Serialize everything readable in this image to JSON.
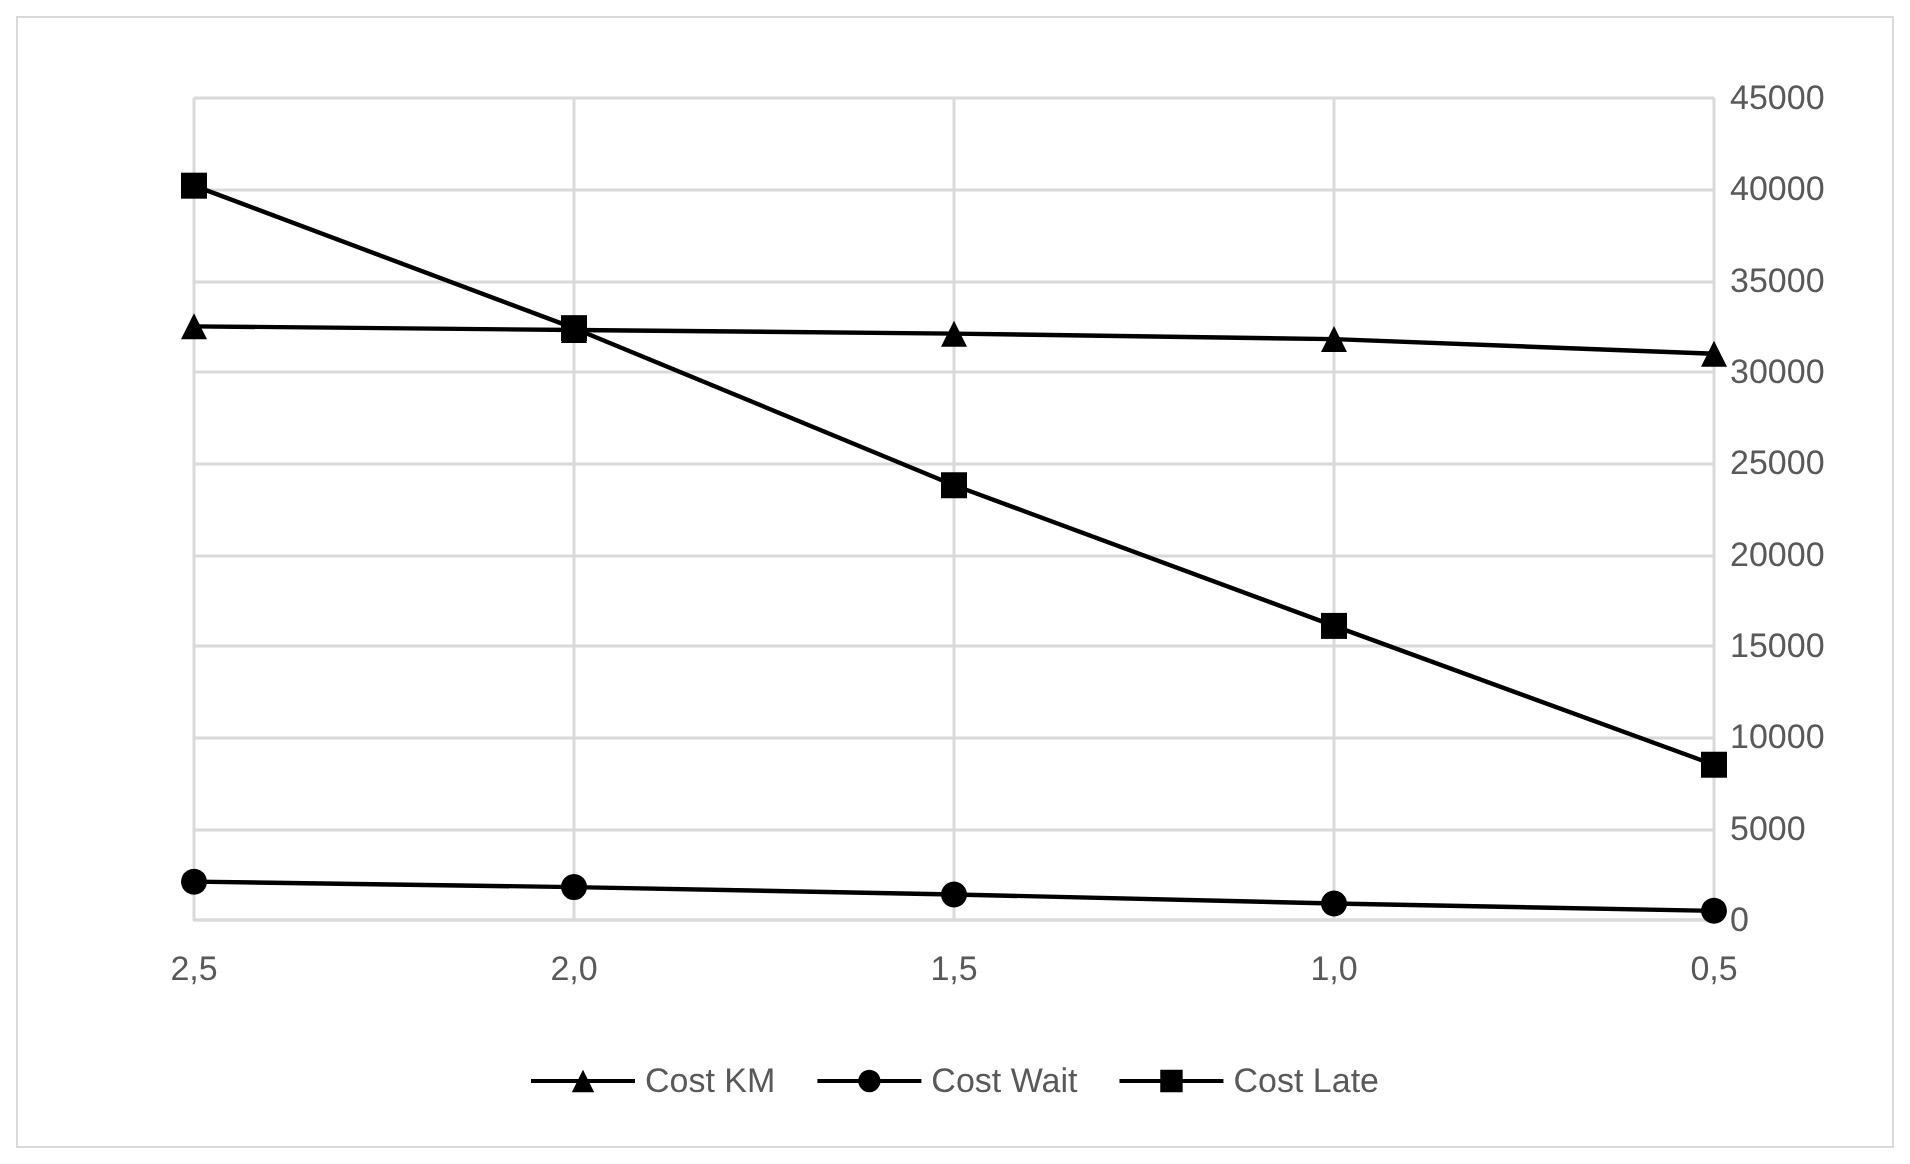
{
  "chart_data": {
    "type": "line",
    "categories": [
      "2,5",
      "2,0",
      "1,5",
      "1,0",
      "0,5"
    ],
    "series": [
      {
        "name": "Cost KM",
        "color": "#000000",
        "marker": "triangle",
        "values": [
          32500,
          32300,
          32100,
          31800,
          31000
        ]
      },
      {
        "name": "Cost Wait",
        "color": "#000000",
        "marker": "circle",
        "values": [
          2100,
          1800,
          1400,
          900,
          500
        ]
      },
      {
        "name": "Cost Late",
        "color": "#000000",
        "marker": "square",
        "values": [
          40200,
          32400,
          23800,
          16100,
          8500
        ]
      }
    ],
    "ylim": [
      0,
      45000
    ],
    "yticks": [
      0,
      5000,
      10000,
      15000,
      20000,
      25000,
      30000,
      35000,
      40000,
      45000
    ],
    "grid": true,
    "legend": "bottom",
    "line_style": "solid"
  }
}
